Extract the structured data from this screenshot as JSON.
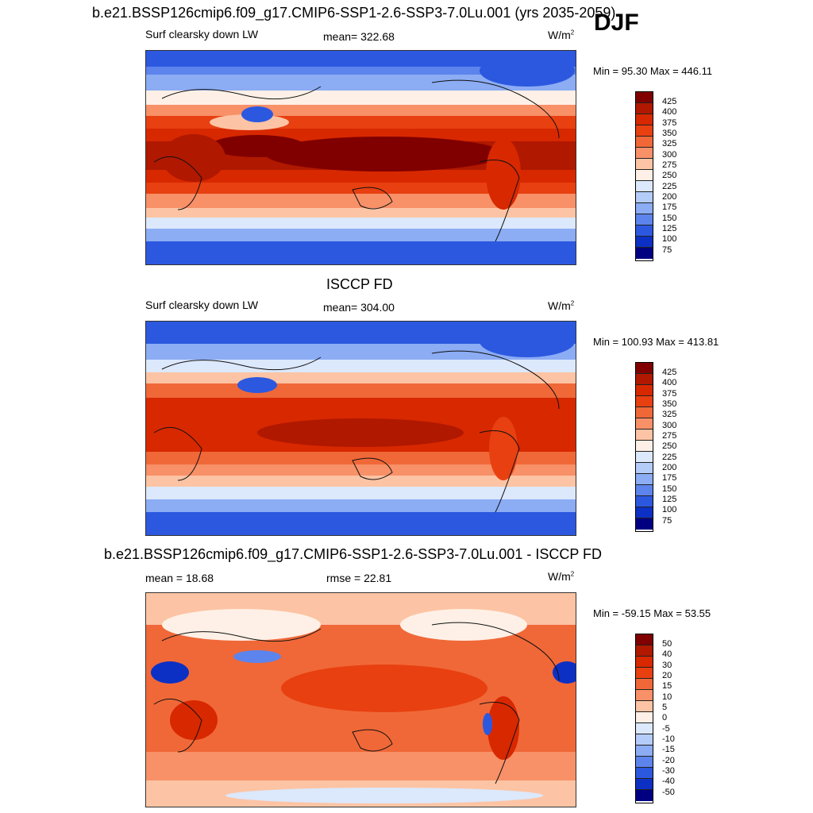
{
  "season": "DJF",
  "panels": [
    {
      "title": "b.e21.BSSP126cmip6.f09_g17.CMIP6-SSP1-2.6-SSP3-7.0Lu.001 (yrs 2035-2059)",
      "left_label": "Surf clearsky down LW",
      "center_label": "mean= 322.68",
      "units_base": "W/m",
      "units_exp": "2",
      "minmax": "Min =  95.30 Max = 446.11",
      "colorbar": [
        "425",
        "400",
        "375",
        "350",
        "325",
        "300",
        "275",
        "250",
        "225",
        "200",
        "175",
        "150",
        "125",
        "100",
        "75"
      ]
    },
    {
      "title": "ISCCP FD",
      "left_label": "Surf clearsky down LW",
      "center_label": "mean= 304.00",
      "units_base": "W/m",
      "units_exp": "2",
      "minmax": "Min = 100.93 Max = 413.81",
      "colorbar": [
        "425",
        "400",
        "375",
        "350",
        "325",
        "300",
        "275",
        "250",
        "225",
        "200",
        "175",
        "150",
        "125",
        "100",
        "75"
      ]
    },
    {
      "title": "b.e21.BSSP126cmip6.f09_g17.CMIP6-SSP1-2.6-SSP3-7.0Lu.001 - ISCCP FD",
      "left_label": "mean =  18.68",
      "center_label": "rmse =  22.81",
      "units_base": "W/m",
      "units_exp": "2",
      "minmax": "Min = -59.15 Max =  53.55",
      "colorbar": [
        "50",
        "40",
        "30",
        "20",
        "15",
        "10",
        "5",
        "0",
        "-5",
        "-10",
        "-15",
        "-20",
        "-30",
        "-40",
        "-50"
      ]
    }
  ],
  "colors": {
    "palette": [
      "#800000",
      "#b01800",
      "#d82800",
      "#e84010",
      "#f06838",
      "#f89068",
      "#fcc4a4",
      "#fef0e6",
      "#dce8fc",
      "#b4ccf8",
      "#8cacf4",
      "#5c84ec",
      "#2c58e0",
      "#0c30c4",
      "#000080"
    ]
  }
}
